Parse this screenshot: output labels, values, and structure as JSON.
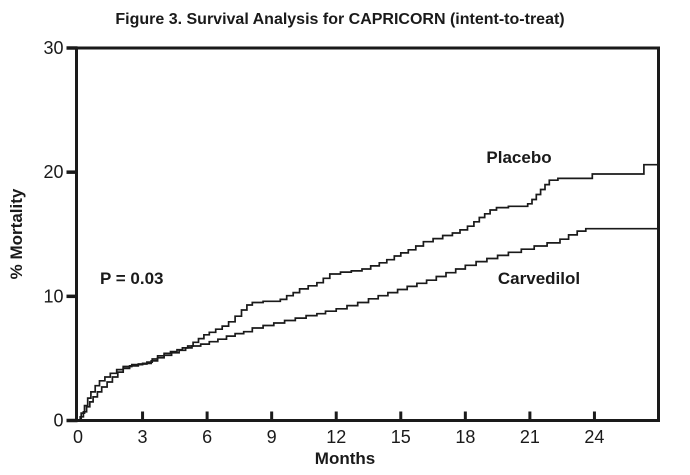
{
  "figure": {
    "background": "#ffffff",
    "line_color": "#1a1a1a"
  },
  "chart_data": {
    "type": "line",
    "subtype": "step-survival",
    "title": "Figure 3. Survival Analysis for CAPRICORN (intent-to-treat)",
    "xlabel": "Months",
    "ylabel": "% Mortality",
    "xlim": [
      0,
      27
    ],
    "ylim": [
      0,
      30
    ],
    "x_ticks": [
      0,
      3,
      6,
      9,
      12,
      15,
      18,
      21,
      24
    ],
    "y_ticks": [
      0,
      10,
      20,
      30
    ],
    "grid": false,
    "legend_position": "inline-labels",
    "annotations": [
      {
        "text": "P = 0.03",
        "x_month": 1.0,
        "y_pct": 11.0
      }
    ],
    "series": [
      {
        "name": "Placebo",
        "label_x_month": 20.5,
        "label_y_pct": 20.9,
        "points": [
          [
            0,
            0
          ],
          [
            0.1,
            0.3
          ],
          [
            0.25,
            0.7
          ],
          [
            0.4,
            1.1
          ],
          [
            0.55,
            1.5
          ],
          [
            0.7,
            1.9
          ],
          [
            0.9,
            2.3
          ],
          [
            1.1,
            2.7
          ],
          [
            1.35,
            3.1
          ],
          [
            1.6,
            3.5
          ],
          [
            1.85,
            3.9
          ],
          [
            2.1,
            4.2
          ],
          [
            2.4,
            4.4
          ],
          [
            2.8,
            4.55
          ],
          [
            3.2,
            4.7
          ],
          [
            3.45,
            4.95
          ],
          [
            3.7,
            5.2
          ],
          [
            4.0,
            5.4
          ],
          [
            4.3,
            5.55
          ],
          [
            4.6,
            5.7
          ],
          [
            4.85,
            5.85
          ],
          [
            5.1,
            6.0
          ],
          [
            5.35,
            6.3
          ],
          [
            5.6,
            6.6
          ],
          [
            5.85,
            6.9
          ],
          [
            6.1,
            7.1
          ],
          [
            6.4,
            7.35
          ],
          [
            6.7,
            7.6
          ],
          [
            7.0,
            7.95
          ],
          [
            7.3,
            8.4
          ],
          [
            7.6,
            8.9
          ],
          [
            7.85,
            9.3
          ],
          [
            8.1,
            9.5
          ],
          [
            8.6,
            9.6
          ],
          [
            9.4,
            9.75
          ],
          [
            9.7,
            10.05
          ],
          [
            10.0,
            10.3
          ],
          [
            10.3,
            10.6
          ],
          [
            10.7,
            10.85
          ],
          [
            11.1,
            11.1
          ],
          [
            11.4,
            11.45
          ],
          [
            11.7,
            11.8
          ],
          [
            12.2,
            11.95
          ],
          [
            12.7,
            12.05
          ],
          [
            13.2,
            12.2
          ],
          [
            13.6,
            12.45
          ],
          [
            14.0,
            12.7
          ],
          [
            14.35,
            12.95
          ],
          [
            14.7,
            13.25
          ],
          [
            15.0,
            13.5
          ],
          [
            15.35,
            13.75
          ],
          [
            15.7,
            14.05
          ],
          [
            16.05,
            14.4
          ],
          [
            16.5,
            14.65
          ],
          [
            16.95,
            14.9
          ],
          [
            17.4,
            15.1
          ],
          [
            17.75,
            15.35
          ],
          [
            18.1,
            15.65
          ],
          [
            18.4,
            16.0
          ],
          [
            18.65,
            16.35
          ],
          [
            18.9,
            16.65
          ],
          [
            19.15,
            16.95
          ],
          [
            19.45,
            17.15
          ],
          [
            20.0,
            17.25
          ],
          [
            20.9,
            17.45
          ],
          [
            21.1,
            17.8
          ],
          [
            21.3,
            18.2
          ],
          [
            21.5,
            18.6
          ],
          [
            21.7,
            19.0
          ],
          [
            21.9,
            19.35
          ],
          [
            22.3,
            19.5
          ],
          [
            23.9,
            19.85
          ],
          [
            26.3,
            20.6
          ],
          [
            27,
            20.6
          ]
        ]
      },
      {
        "name": "Carvedilol",
        "label_x_month": 21.4,
        "label_y_pct": 11.1,
        "points": [
          [
            0,
            0
          ],
          [
            0.15,
            0.6
          ],
          [
            0.3,
            1.2
          ],
          [
            0.45,
            1.8
          ],
          [
            0.6,
            2.3
          ],
          [
            0.8,
            2.8
          ],
          [
            1.0,
            3.2
          ],
          [
            1.25,
            3.5
          ],
          [
            1.5,
            3.8
          ],
          [
            1.8,
            4.1
          ],
          [
            2.1,
            4.35
          ],
          [
            2.5,
            4.5
          ],
          [
            3.0,
            4.6
          ],
          [
            3.4,
            4.8
          ],
          [
            3.7,
            5.05
          ],
          [
            4.0,
            5.25
          ],
          [
            4.35,
            5.45
          ],
          [
            4.7,
            5.65
          ],
          [
            5.0,
            5.85
          ],
          [
            5.3,
            6.0
          ],
          [
            5.7,
            6.15
          ],
          [
            6.1,
            6.35
          ],
          [
            6.5,
            6.55
          ],
          [
            6.9,
            6.8
          ],
          [
            7.3,
            7.0
          ],
          [
            7.7,
            7.15
          ],
          [
            8.1,
            7.45
          ],
          [
            8.6,
            7.65
          ],
          [
            9.1,
            7.85
          ],
          [
            9.6,
            8.05
          ],
          [
            10.1,
            8.25
          ],
          [
            10.6,
            8.45
          ],
          [
            11.1,
            8.6
          ],
          [
            11.5,
            8.8
          ],
          [
            12.0,
            9.0
          ],
          [
            12.5,
            9.25
          ],
          [
            13.0,
            9.5
          ],
          [
            13.5,
            9.8
          ],
          [
            13.95,
            10.05
          ],
          [
            14.4,
            10.3
          ],
          [
            14.85,
            10.55
          ],
          [
            15.3,
            10.8
          ],
          [
            15.75,
            11.05
          ],
          [
            16.2,
            11.3
          ],
          [
            16.65,
            11.6
          ],
          [
            17.1,
            11.9
          ],
          [
            17.55,
            12.2
          ],
          [
            18.0,
            12.5
          ],
          [
            18.5,
            12.8
          ],
          [
            19.0,
            13.05
          ],
          [
            19.5,
            13.3
          ],
          [
            20.0,
            13.55
          ],
          [
            20.6,
            13.8
          ],
          [
            21.2,
            14.05
          ],
          [
            21.8,
            14.3
          ],
          [
            22.4,
            14.6
          ],
          [
            22.8,
            14.95
          ],
          [
            23.2,
            15.25
          ],
          [
            23.6,
            15.45
          ],
          [
            27,
            15.45
          ]
        ]
      }
    ]
  }
}
